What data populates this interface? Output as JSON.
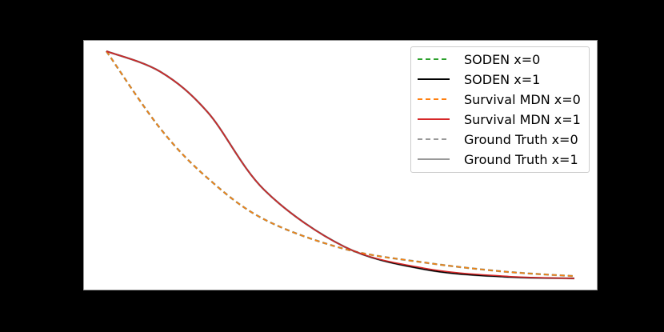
{
  "chart_data": {
    "type": "line",
    "title": "",
    "xlabel": "",
    "ylabel": "",
    "grid": false,
    "legend_position": "upper right",
    "axes_visible_ticks": false,
    "x": [
      0.0,
      0.115,
      0.217,
      0.337,
      0.508,
      0.679,
      0.85,
      1.0
    ],
    "ylim": [
      0,
      1
    ],
    "xlim": [
      0,
      1
    ],
    "series": [
      {
        "name": "SODEN x=0",
        "color": "#2ca02c",
        "style": "dashed",
        "values": [
          1.0,
          0.66,
          0.44,
          0.26,
          0.13,
          0.07,
          0.03,
          0.01
        ]
      },
      {
        "name": "SODEN x=1",
        "color": "#000000",
        "style": "solid",
        "values": [
          1.0,
          0.91,
          0.73,
          0.39,
          0.14,
          0.04,
          0.007,
          0.0
        ]
      },
      {
        "name": "Survival MDN x=0",
        "color": "#ff7f0e",
        "style": "dashed",
        "values": [
          1.0,
          0.66,
          0.44,
          0.26,
          0.13,
          0.07,
          0.03,
          0.01
        ]
      },
      {
        "name": "Survival MDN x=1",
        "color": "#d62728",
        "style": "solid",
        "values": [
          1.0,
          0.91,
          0.73,
          0.39,
          0.14,
          0.045,
          0.01,
          0.0
        ]
      },
      {
        "name": "Ground Truth x=0",
        "color": "#999999",
        "style": "dashed",
        "values": [
          1.0,
          0.66,
          0.44,
          0.26,
          0.13,
          0.07,
          0.03,
          0.01
        ]
      },
      {
        "name": "Ground Truth x=1",
        "color": "#999999",
        "style": "solid",
        "values": [
          1.0,
          0.91,
          0.73,
          0.39,
          0.14,
          0.04,
          0.007,
          0.0
        ]
      }
    ]
  },
  "legend": {
    "items": [
      {
        "label": "SODEN x=0",
        "color": "#2ca02c",
        "dash": "4,3"
      },
      {
        "label": "SODEN x=1",
        "color": "#000000",
        "dash": ""
      },
      {
        "label": "Survival MDN x=0",
        "color": "#ff7f0e",
        "dash": "4,3"
      },
      {
        "label": "Survival MDN x=1",
        "color": "#d62728",
        "dash": ""
      },
      {
        "label": "Ground Truth x=0",
        "color": "#999999",
        "dash": "4,3"
      },
      {
        "label": "Ground Truth x=1",
        "color": "#999999",
        "dash": ""
      }
    ]
  }
}
